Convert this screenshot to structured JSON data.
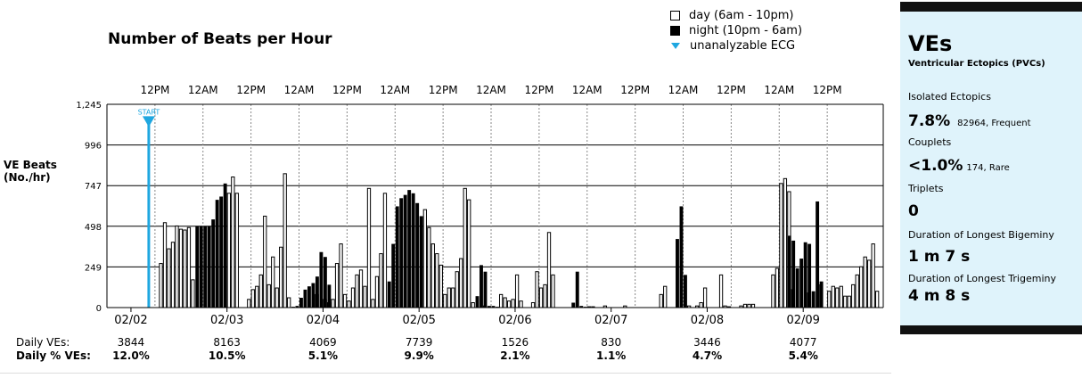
{
  "title": "Number of Beats per Hour",
  "legend": {
    "day": "day (6am - 10pm)",
    "night": "night (10pm - 6am)",
    "unanalyzable": "unanalyzable ECG"
  },
  "y_axis_label_line1": "VE Beats",
  "y_axis_label_line2": "(No./hr)",
  "colors": {
    "accent": "#1fa7e0",
    "panel_bg": "#dff3fb",
    "bar": "#000000"
  },
  "chart_data": {
    "type": "bar",
    "title": "Number of Beats per Hour",
    "ylabel": "VE Beats (No./hr)",
    "ylim": [
      0,
      1245
    ],
    "y_ticks": [
      "0",
      "249",
      "498",
      "747",
      "996",
      "1,245"
    ],
    "top_ticks": [
      "12PM",
      "12AM",
      "12PM",
      "12AM",
      "12PM",
      "12AM",
      "12PM",
      "12AM",
      "12PM",
      "12AM",
      "12PM",
      "12AM",
      "12PM",
      "12AM",
      "12PM"
    ],
    "dates": [
      "02/02",
      "02/03",
      "02/04",
      "02/05",
      "02/06",
      "02/07",
      "02/08",
      "02/09"
    ],
    "start_marker": "START",
    "series": [
      {
        "name": "day (6am - 10pm)",
        "bars": [
          [
            13,
            270
          ],
          [
            14,
            520
          ],
          [
            15,
            360
          ],
          [
            16,
            400
          ],
          [
            17,
            500
          ],
          [
            18,
            480
          ],
          [
            19,
            475
          ],
          [
            20,
            490
          ],
          [
            21,
            170
          ],
          [
            30,
            700
          ],
          [
            31,
            800
          ],
          [
            32,
            700
          ],
          [
            35,
            50
          ],
          [
            36,
            110
          ],
          [
            37,
            130
          ],
          [
            38,
            200
          ],
          [
            39,
            560
          ],
          [
            40,
            140
          ],
          [
            41,
            310
          ],
          [
            42,
            120
          ],
          [
            43,
            370
          ],
          [
            44,
            820
          ],
          [
            45,
            60
          ],
          [
            52,
            80
          ],
          [
            54,
            50
          ],
          [
            55,
            30
          ],
          [
            56,
            50
          ],
          [
            57,
            270
          ],
          [
            58,
            390
          ],
          [
            59,
            80
          ],
          [
            60,
            40
          ],
          [
            61,
            120
          ],
          [
            62,
            200
          ],
          [
            63,
            230
          ],
          [
            64,
            130
          ],
          [
            65,
            730
          ],
          [
            66,
            50
          ],
          [
            67,
            190
          ],
          [
            68,
            330
          ],
          [
            69,
            700
          ],
          [
            79,
            600
          ],
          [
            80,
            490
          ],
          [
            81,
            390
          ],
          [
            82,
            330
          ],
          [
            83,
            260
          ],
          [
            84,
            80
          ],
          [
            85,
            120
          ],
          [
            86,
            120
          ],
          [
            87,
            220
          ],
          [
            88,
            300
          ],
          [
            89,
            730
          ],
          [
            90,
            660
          ],
          [
            91,
            30
          ],
          [
            94,
            10
          ],
          [
            98,
            80
          ],
          [
            99,
            60
          ],
          [
            100,
            40
          ],
          [
            101,
            50
          ],
          [
            102,
            200
          ],
          [
            103,
            40
          ],
          [
            106,
            30
          ],
          [
            107,
            220
          ],
          [
            108,
            120
          ],
          [
            109,
            140
          ],
          [
            110,
            460
          ],
          [
            111,
            200
          ],
          [
            120,
            5
          ],
          [
            121,
            5
          ],
          [
            124,
            10
          ],
          [
            129,
            10
          ],
          [
            138,
            80
          ],
          [
            139,
            130
          ],
          [
            145,
            10
          ],
          [
            147,
            10
          ],
          [
            148,
            30
          ],
          [
            149,
            120
          ],
          [
            153,
            200
          ],
          [
            154,
            10
          ],
          [
            155,
            5
          ],
          [
            158,
            10
          ],
          [
            159,
            20
          ],
          [
            160,
            20
          ],
          [
            161,
            20
          ],
          [
            166,
            200
          ],
          [
            167,
            240
          ],
          [
            168,
            760
          ],
          [
            169,
            790
          ],
          [
            170,
            710
          ],
          [
            171,
            110
          ],
          [
            175,
            90
          ],
          [
            178,
            140
          ],
          [
            180,
            100
          ],
          [
            181,
            130
          ],
          [
            182,
            120
          ],
          [
            183,
            130
          ],
          [
            184,
            70
          ],
          [
            185,
            70
          ],
          [
            186,
            140
          ],
          [
            187,
            200
          ],
          [
            188,
            250
          ],
          [
            189,
            310
          ],
          [
            190,
            290
          ],
          [
            191,
            390
          ],
          [
            192,
            100
          ]
        ]
      },
      {
        "name": "night (10pm - 6am)",
        "bars": [
          [
            22,
            500
          ],
          [
            23,
            500
          ],
          [
            24,
            500
          ],
          [
            25,
            500
          ],
          [
            26,
            540
          ],
          [
            27,
            660
          ],
          [
            28,
            680
          ],
          [
            29,
            760
          ],
          [
            46,
            5
          ],
          [
            47,
            10
          ],
          [
            48,
            60
          ],
          [
            49,
            110
          ],
          [
            50,
            130
          ],
          [
            51,
            150
          ],
          [
            52,
            190
          ],
          [
            53,
            340
          ],
          [
            54,
            310
          ],
          [
            55,
            140
          ],
          [
            70,
            160
          ],
          [
            71,
            390
          ],
          [
            72,
            620
          ],
          [
            73,
            670
          ],
          [
            74,
            690
          ],
          [
            75,
            720
          ],
          [
            76,
            700
          ],
          [
            77,
            640
          ],
          [
            78,
            560
          ],
          [
            92,
            70
          ],
          [
            93,
            260
          ],
          [
            94,
            220
          ],
          [
            95,
            10
          ],
          [
            96,
            10
          ],
          [
            97,
            5
          ],
          [
            116,
            30
          ],
          [
            117,
            220
          ],
          [
            118,
            10
          ],
          [
            119,
            5
          ],
          [
            142,
            420
          ],
          [
            143,
            620
          ],
          [
            144,
            200
          ],
          [
            170,
            440
          ],
          [
            171,
            410
          ],
          [
            172,
            240
          ],
          [
            173,
            300
          ],
          [
            174,
            400
          ],
          [
            175,
            390
          ],
          [
            176,
            100
          ],
          [
            177,
            650
          ],
          [
            178,
            160
          ]
        ]
      }
    ],
    "unanalyzable": [
      [
        10,
        1150
      ]
    ],
    "daily_ves": [
      "3844",
      "8163",
      "4069",
      "7739",
      "1526",
      "830",
      "3446",
      "4077"
    ],
    "daily_pct": [
      "12.0%",
      "10.5%",
      "5.1%",
      "9.9%",
      "2.1%",
      "1.1%",
      "4.7%",
      "5.4%"
    ]
  },
  "daily": {
    "label_ves": "Daily VEs:",
    "label_pct": "Daily % VEs:"
  },
  "panel": {
    "title": "VEs",
    "subtitle": "Ventricular Ectopics (PVCs)",
    "isolated_label": "Isolated Ectopics",
    "isolated_value": "7.8%",
    "isolated_note": "82964, Frequent",
    "couplets_label": "Couplets",
    "couplets_value": "<1.0%",
    "couplets_note": "174, Rare",
    "triplets_label": "Triplets",
    "triplets_value": "0",
    "bigeminy_label": "Duration of Longest Bigeminy",
    "bigeminy_value": "1 m 7 s",
    "trigeminy_label": "Duration of Longest Trigeminy",
    "trigeminy_value": "4 m 8 s"
  }
}
